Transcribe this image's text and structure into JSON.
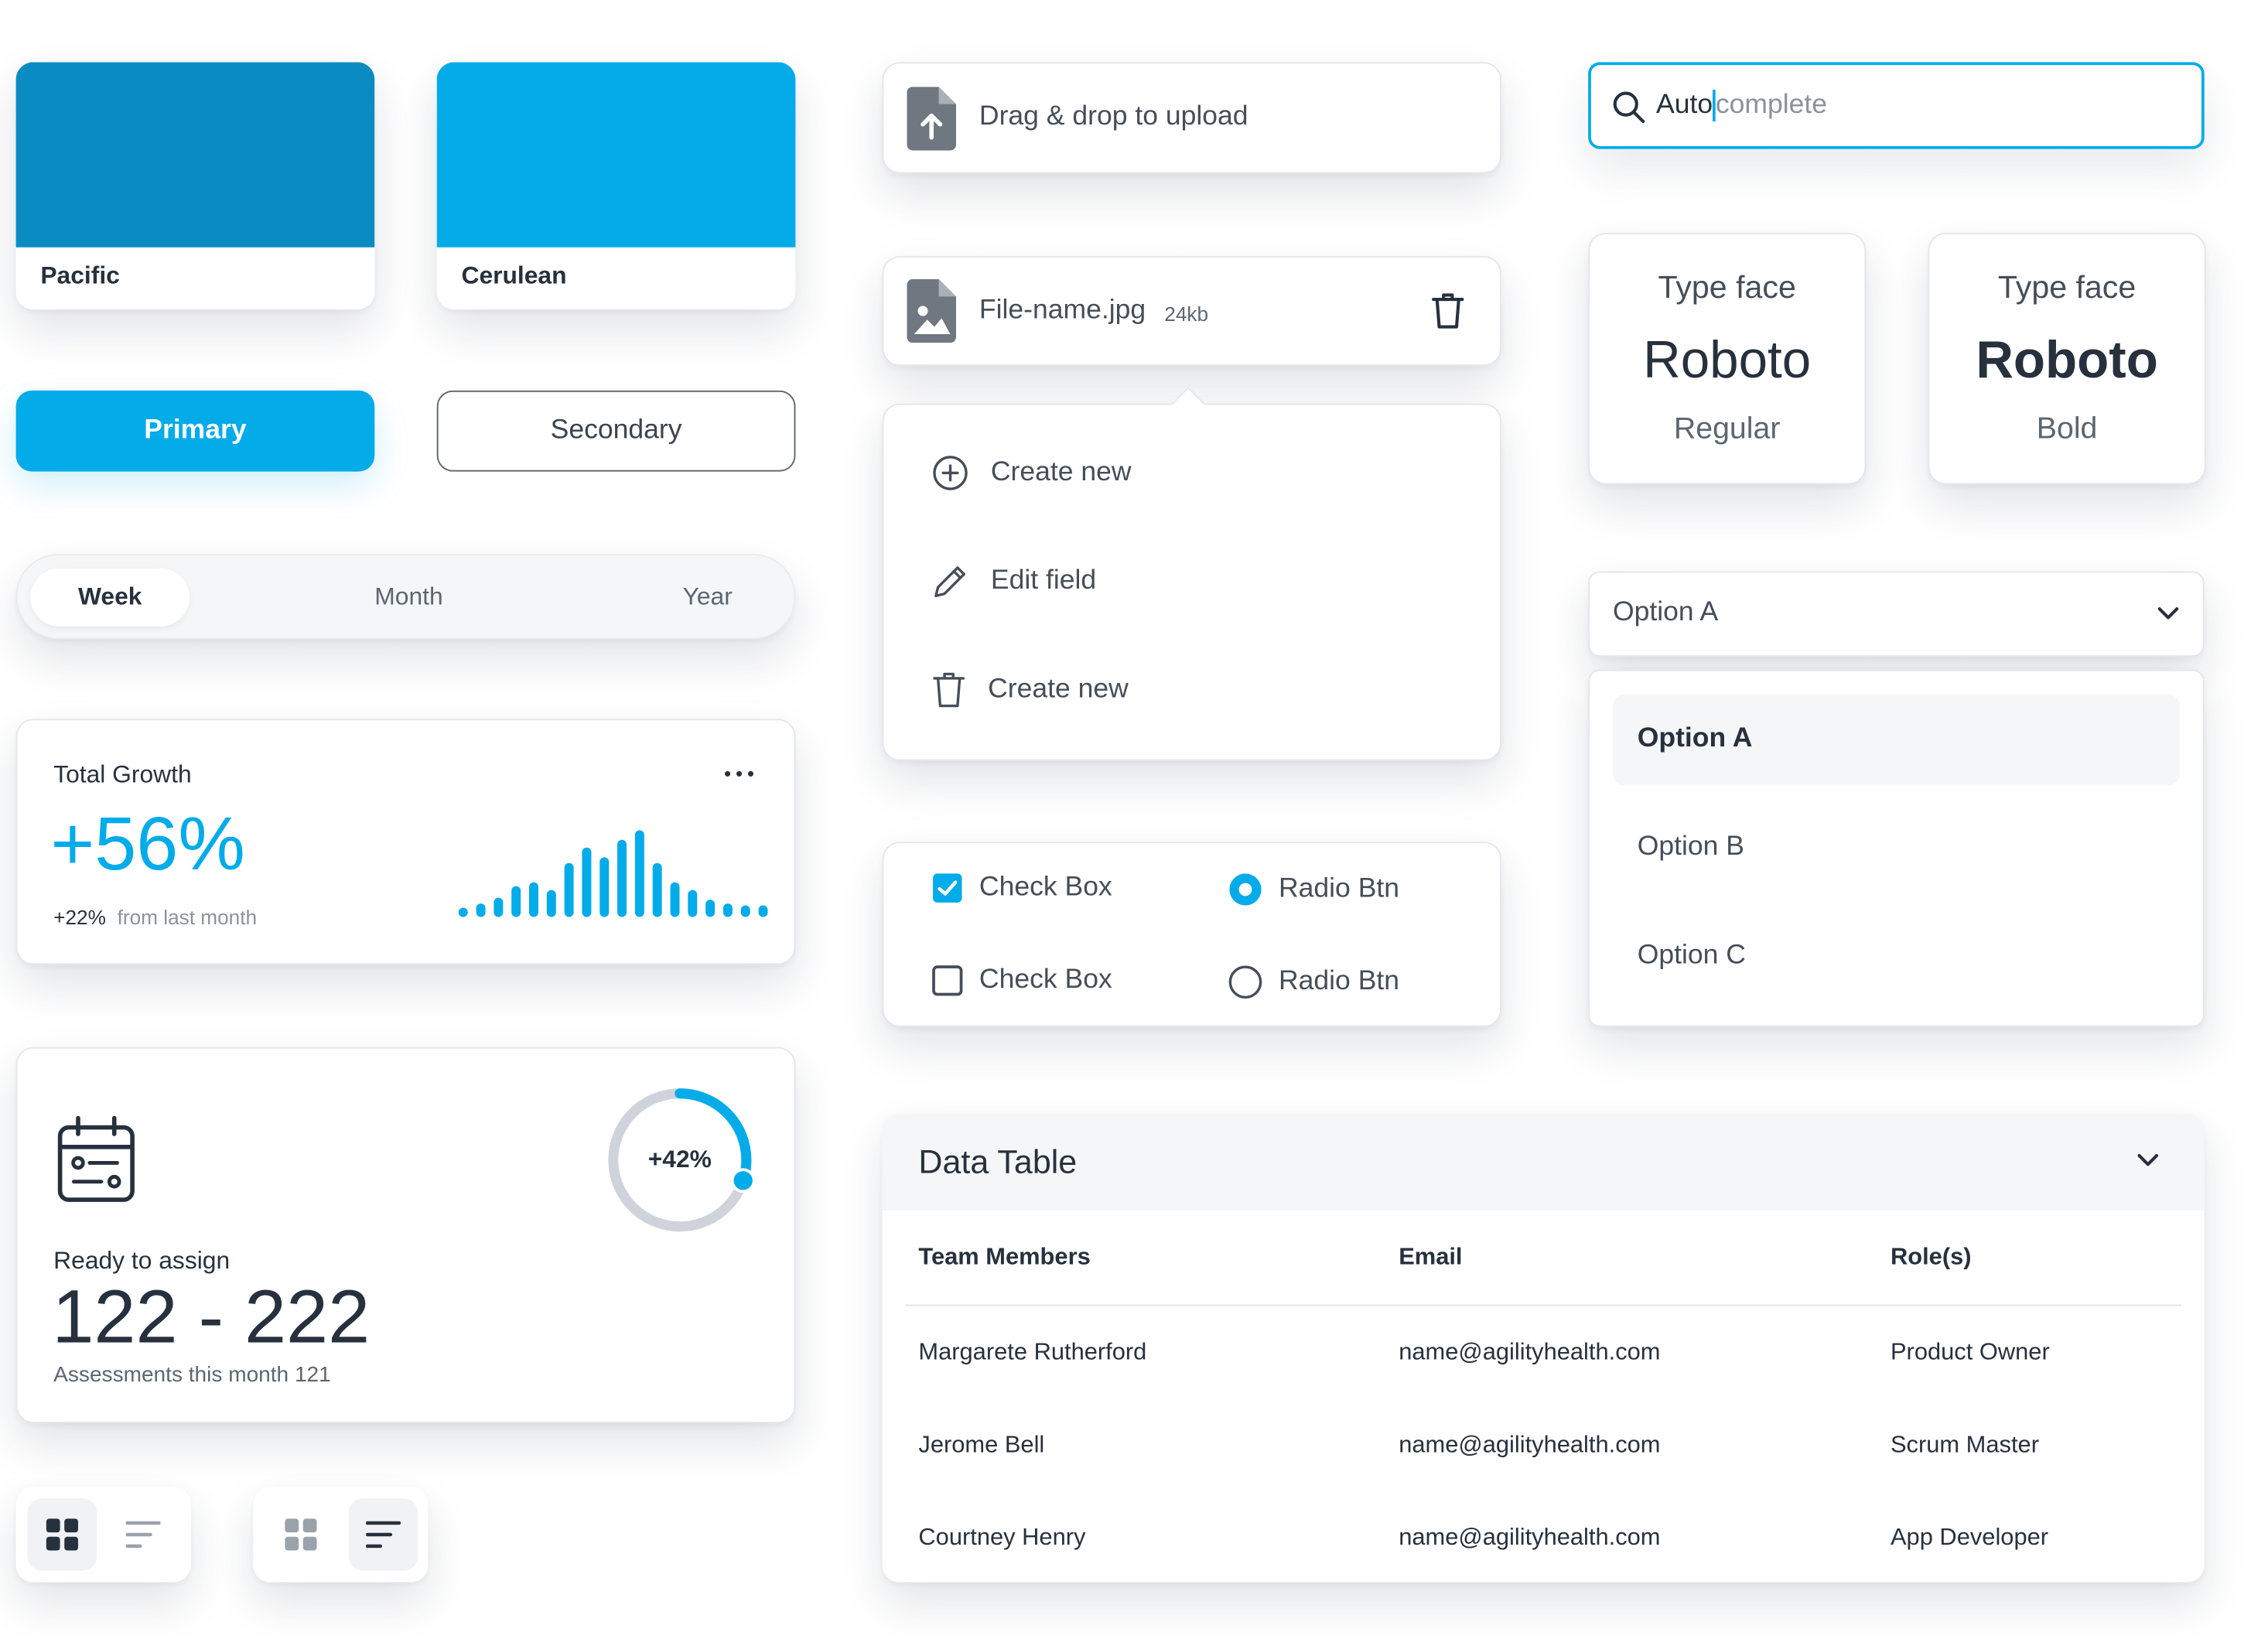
{
  "colors": {
    "pacific": "#0a8cc2",
    "cerulean": "#03abe9",
    "primary": "#03abe9",
    "text_dark": "#27313d",
    "text_muted": "#8a939c"
  },
  "swatches": [
    {
      "name": "Pacific",
      "color": "#0a8cc2"
    },
    {
      "name": "Cerulean",
      "color": "#03abe9"
    }
  ],
  "buttons": {
    "primary": "Primary",
    "secondary": "Secondary"
  },
  "segmented": {
    "items": [
      "Week",
      "Month",
      "Year"
    ],
    "selected": "Week"
  },
  "growth_card": {
    "title": "Total Growth",
    "value": "+56%",
    "delta": "+22%",
    "delta_note": "from last month",
    "menu_icon": "more-horizontal-icon",
    "bars": [
      4,
      7,
      10,
      16,
      18,
      14,
      28,
      36,
      31,
      40,
      45,
      28,
      18,
      14,
      9,
      7,
      6,
      6
    ]
  },
  "assign_card": {
    "icon": "calendar-icon",
    "label": "Ready to assign",
    "range": "122 - 222",
    "note": "Assessments this month 121",
    "progress_label": "+42%",
    "progress": 0.3
  },
  "view_toggles": [
    {
      "icons": [
        "grid-icon",
        "sort-lines-icon"
      ],
      "active": 0
    },
    {
      "icons": [
        "grid-icon",
        "sort-lines-icon"
      ],
      "active": 1
    }
  ],
  "upload": {
    "label": "Drag & drop to upload",
    "icon": "file-upload-icon"
  },
  "file": {
    "name": "File-name.jpg",
    "size": "24kb",
    "icon": "file-image-icon",
    "delete_icon": "trash-icon"
  },
  "context_menu": [
    {
      "label": "Create new",
      "icon": "plus-circle-icon"
    },
    {
      "label": "Edit field",
      "icon": "pencil-icon"
    },
    {
      "label": "Create new",
      "icon": "trash-icon"
    }
  ],
  "controls": {
    "checkbox_checked": "Check Box",
    "radio_checked": "Radio Btn",
    "checkbox_unchecked": "Check Box",
    "radio_unchecked": "Radio Btn"
  },
  "search": {
    "typed": "Auto",
    "suggestion": "complete"
  },
  "typefaces": [
    {
      "label": "Type face",
      "font": "Roboto",
      "weight": "Regular"
    },
    {
      "label": "Type face",
      "font": "Roboto",
      "weight": "Bold"
    }
  ],
  "dropdown": {
    "value": "Option A",
    "options": [
      "Option A",
      "Option B",
      "Option C"
    ],
    "selected": "Option A"
  },
  "table": {
    "title": "Data Table",
    "columns": [
      "Team Members",
      "Email",
      "Role(s)"
    ],
    "rows": [
      [
        "Margarete Rutherford",
        "name@agilityhealth.com",
        "Product Owner"
      ],
      [
        "Jerome Bell",
        "name@agilityhealth.com",
        "Scrum Master"
      ],
      [
        "Courtney Henry",
        "name@agilityhealth.com",
        "App Developer"
      ]
    ]
  }
}
